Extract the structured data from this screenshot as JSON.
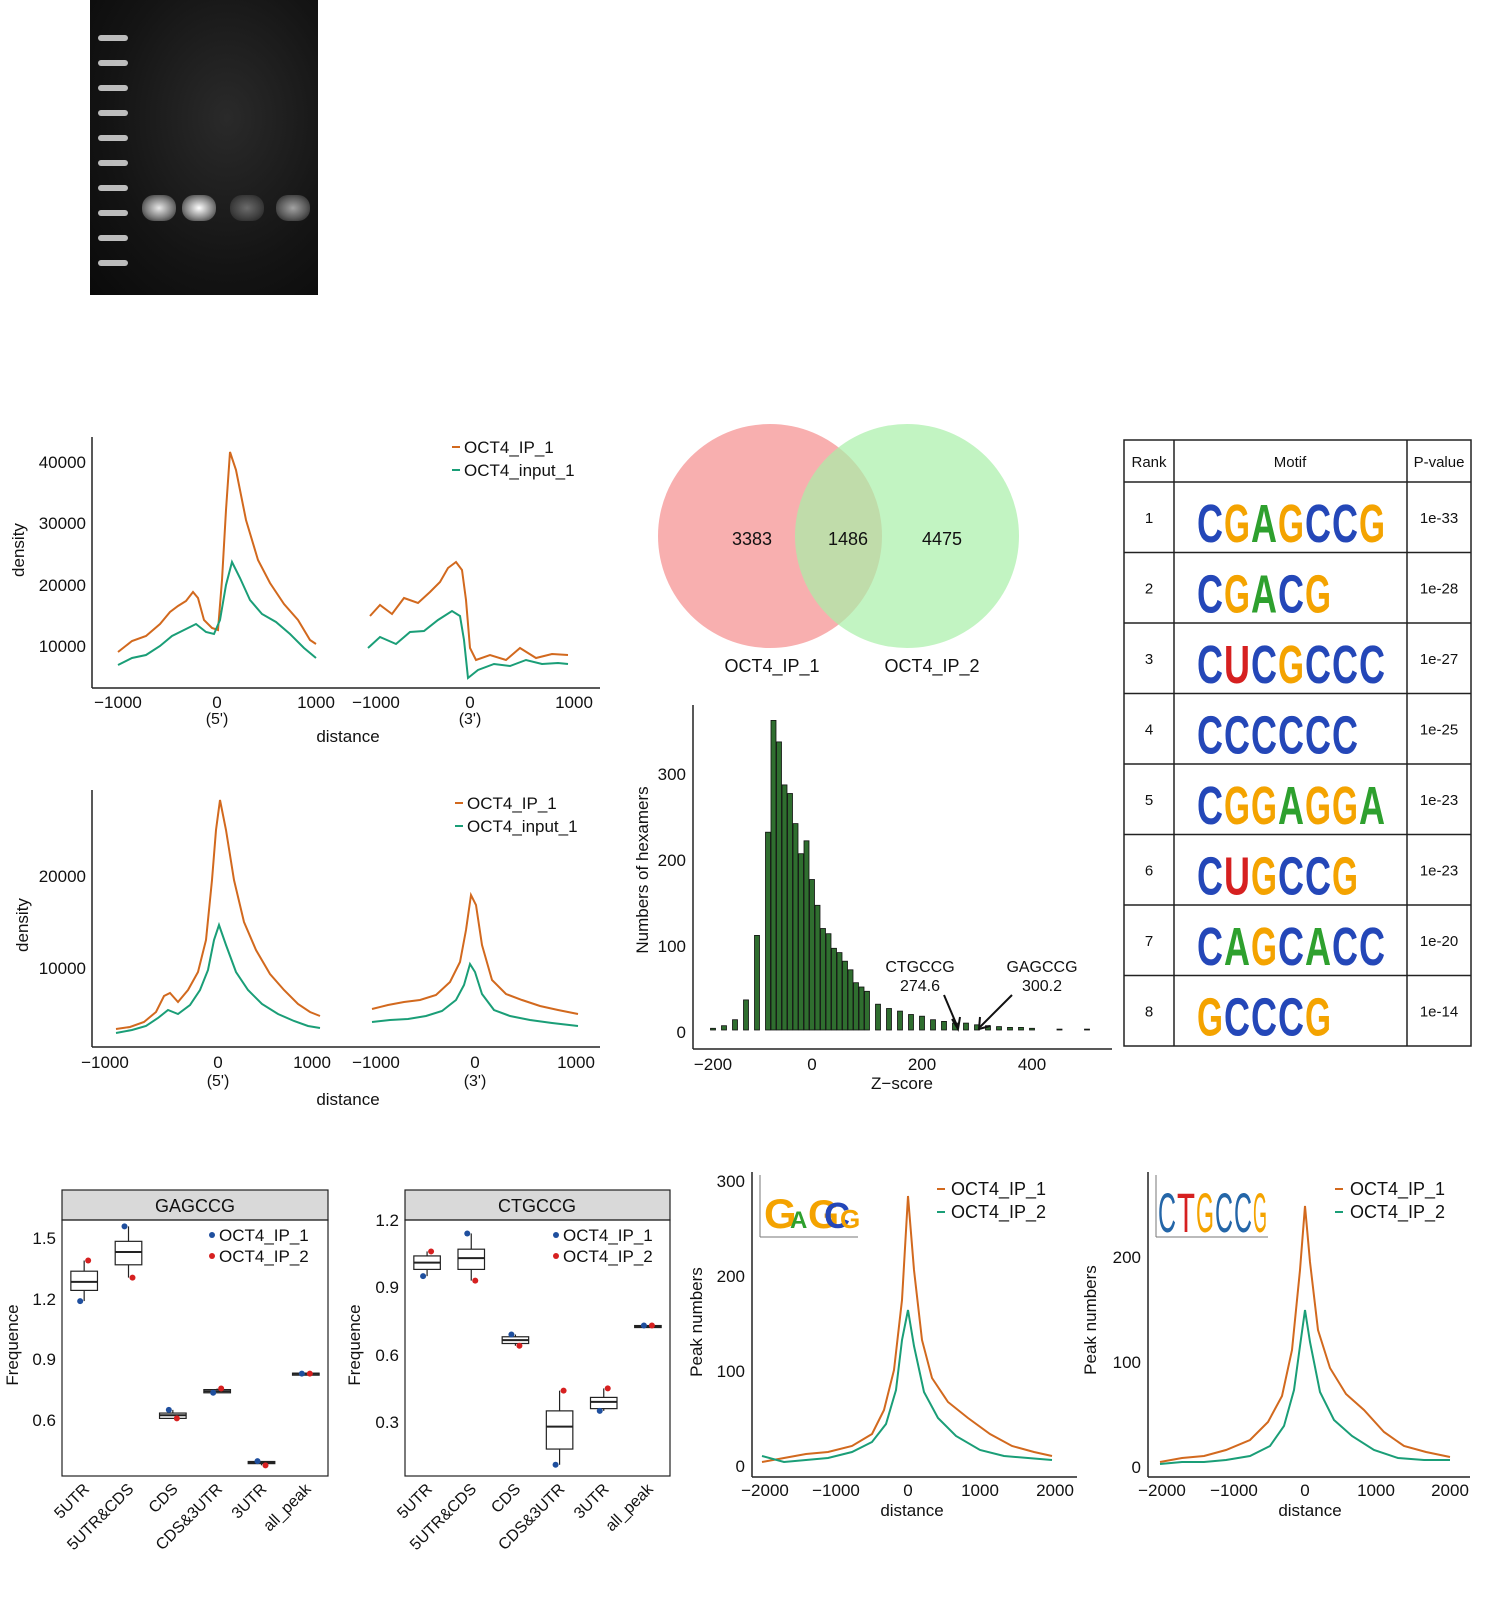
{
  "colors": {
    "ip1": "#d2691e",
    "input": "#1a9e77",
    "ip2_line": "#1a9e77",
    "venn_a": "#f7a1a1",
    "venn_b": "#a8f0a8",
    "hist": "#2f6e2f",
    "box_ip1": "#1f4f9e",
    "box_ip2": "#d62020",
    "strip": "#d9d9d9"
  },
  "gel": {
    "lanes": 4,
    "ladder_bands": 10
  },
  "metagene_a": {
    "ylabel": "density",
    "xlabel": "distance",
    "ytick_labels": [
      "10000",
      "20000",
      "30000",
      "40000"
    ],
    "left_xticks": [
      "−1000",
      "0",
      "1000"
    ],
    "right_xticks": [
      "−1000",
      "0",
      "1000"
    ],
    "left_sub": "(5')",
    "right_sub": "(3')",
    "legend": [
      "OCT4_IP_1",
      "OCT4_input_1"
    ]
  },
  "metagene_b": {
    "ylabel": "density",
    "xlabel": "distance",
    "ytick_labels": [
      "10000",
      "20000"
    ],
    "left_xticks": [
      "−1000",
      "0",
      "1000"
    ],
    "right_xticks": [
      "−1000",
      "0",
      "1000"
    ],
    "left_sub": "(5')",
    "right_sub": "(3')",
    "legend": [
      "OCT4_IP_1",
      "OCT4_input_1"
    ]
  },
  "venn": {
    "left_only": "3383",
    "overlap": "1486",
    "right_only": "4475",
    "left_label": "OCT4_IP_1",
    "right_label": "OCT4_IP_2"
  },
  "histogram": {
    "xlabel": "Z−score",
    "ylabel": "Numbers of hexamers",
    "xtick_labels": [
      "−200",
      "0",
      "200",
      "400"
    ],
    "ytick_labels": [
      "0",
      "100",
      "200",
      "300"
    ],
    "annotations": [
      {
        "name": "CTGCCG",
        "value": "274.6"
      },
      {
        "name": "GAGCCG",
        "value": "300.2"
      }
    ]
  },
  "motif_table": {
    "headers": [
      "Rank",
      "Motif",
      "P-value"
    ],
    "rows": [
      {
        "rank": "1",
        "motif": "CGAGCCG",
        "pvalue": "1e-33"
      },
      {
        "rank": "2",
        "motif": "CGACG",
        "pvalue": "1e-28"
      },
      {
        "rank": "3",
        "motif": "CUCGCCC",
        "pvalue": "1e-27"
      },
      {
        "rank": "4",
        "motif": "CCCCCC",
        "pvalue": "1e-25"
      },
      {
        "rank": "5",
        "motif": "CGGAGGA",
        "pvalue": "1e-23"
      },
      {
        "rank": "6",
        "motif": "CUGCCG",
        "pvalue": "1e-23"
      },
      {
        "rank": "7",
        "motif": "CAGCACC",
        "pvalue": "1e-20"
      },
      {
        "rank": "8",
        "motif": "GCCCG",
        "pvalue": "1e-14"
      }
    ]
  },
  "box_gagccg": {
    "strip": "GAGCCG",
    "ylabel": "Frequence",
    "ytick_labels": [
      "0.6",
      "0.9",
      "1.2",
      "1.5"
    ],
    "categories": [
      "5UTR",
      "5UTR&CDS",
      "CDS",
      "CDS&3UTR",
      "3UTR",
      "all_peak"
    ],
    "legend": [
      "OCT4_IP_1",
      "OCT4_IP_2"
    ]
  },
  "box_ctgccg": {
    "strip": "CTGCCG",
    "ylabel": "Frequence",
    "ytick_labels": [
      "0.3",
      "0.6",
      "0.9",
      "1.2"
    ],
    "categories": [
      "5UTR",
      "5UTR&CDS",
      "CDS",
      "CDS&3UTR",
      "3UTR",
      "all_peak"
    ],
    "legend": [
      "OCT4_IP_1",
      "OCT4_IP_2"
    ]
  },
  "peak_gagccg": {
    "ylabel": "Peak numbers",
    "xlabel": "distance",
    "xtick_labels": [
      "−2000",
      "−1000",
      "0",
      "1000",
      "2000"
    ],
    "ytick_labels": [
      "0",
      "100",
      "200",
      "300"
    ],
    "legend": [
      "OCT4_IP_1",
      "OCT4_IP_2"
    ],
    "logo": "GAGCCG"
  },
  "peak_ctgccg": {
    "ylabel": "Peak numbers",
    "xlabel": "distance",
    "xtick_labels": [
      "−2000",
      "−1000",
      "0",
      "1000",
      "2000"
    ],
    "ytick_labels": [
      "0",
      "100",
      "200"
    ],
    "legend": [
      "OCT4_IP_1",
      "OCT4_IP_2"
    ],
    "logo": "CTGCCG"
  },
  "chart_data": [
    {
      "type": "line",
      "ylabel": "density",
      "xlabel": "distance",
      "x": [
        -1000,
        -500,
        -250,
        0,
        150,
        500,
        1000
      ],
      "series": [
        {
          "name": "OCT4_IP_1",
          "segment": "5'",
          "values": [
            8000,
            13000,
            18500,
            13000,
            42000,
            25000,
            10000
          ]
        },
        {
          "name": "OCT4_input_1",
          "segment": "5'",
          "values": [
            6000,
            10000,
            12500,
            13000,
            23500,
            12000,
            7500
          ]
        },
        {
          "name": "OCT4_IP_1",
          "segment": "3'",
          "values": [
            13000,
            17000,
            20000,
            23000,
            7000,
            8000,
            8500
          ]
        },
        {
          "name": "OCT4_input_1",
          "segment": "3'",
          "values": [
            9000,
            11000,
            13000,
            15000,
            5000,
            6500,
            6500
          ]
        }
      ]
    },
    {
      "type": "line",
      "ylabel": "density",
      "xlabel": "distance",
      "x": [
        -1000,
        -500,
        -250,
        0,
        250,
        500,
        1000
      ],
      "series": [
        {
          "name": "OCT4_IP_1",
          "segment": "5'",
          "values": [
            3000,
            7000,
            10000,
            28000,
            15000,
            9000,
            5000
          ]
        },
        {
          "name": "OCT4_input_1",
          "segment": "5'",
          "values": [
            2500,
            5000,
            7500,
            14500,
            9000,
            5500,
            3000
          ]
        },
        {
          "name": "OCT4_IP_1",
          "segment": "3'",
          "values": [
            5500,
            7000,
            9000,
            18000,
            8500,
            6500,
            5000
          ]
        },
        {
          "name": "OCT4_input_1",
          "segment": "3'",
          "values": [
            3500,
            4500,
            6000,
            10500,
            5000,
            4000,
            3000
          ]
        }
      ]
    },
    {
      "type": "bar",
      "xlabel": "Z−score",
      "ylabel": "Numbers of hexamers",
      "x": [
        -180,
        -160,
        -140,
        -120,
        -100,
        -80,
        -70,
        -60,
        -50,
        -40,
        -30,
        -20,
        -10,
        0,
        10,
        20,
        30,
        40,
        50,
        60,
        70,
        80,
        90,
        100,
        120,
        140,
        160,
        180,
        200,
        220,
        240,
        260,
        280,
        300,
        320,
        340,
        360,
        380,
        400,
        450,
        500
      ],
      "values": [
        2,
        5,
        12,
        35,
        110,
        230,
        360,
        335,
        285,
        275,
        240,
        205,
        220,
        175,
        145,
        118,
        112,
        95,
        90,
        80,
        70,
        55,
        50,
        45,
        30,
        25,
        22,
        18,
        16,
        12,
        10,
        8,
        8,
        6,
        5,
        4,
        3,
        3,
        2,
        1,
        1
      ],
      "annotations": [
        {
          "label": "CTGCCG",
          "x": 274.6
        },
        {
          "label": "GAGCCG",
          "x": 300.2
        }
      ]
    },
    {
      "type": "box",
      "title": "GAGCCG",
      "categories": [
        "5UTR",
        "5UTR&CDS",
        "CDS",
        "CDS&3UTR",
        "3UTR",
        "all_peak"
      ],
      "boxes": [
        {
          "q1": 1.23,
          "median": 1.27,
          "q3": 1.32
        },
        {
          "q1": 1.35,
          "median": 1.41,
          "q3": 1.46
        },
        {
          "q1": 0.63,
          "median": 0.645,
          "q3": 0.655
        },
        {
          "q1": 0.75,
          "median": 0.757,
          "q3": 0.765
        },
        {
          "q1": 0.418,
          "median": 0.422,
          "q3": 0.428
        },
        {
          "q1": 0.838,
          "median": 0.84,
          "q3": 0.842
        }
      ],
      "series": [
        {
          "name": "OCT4_IP_1",
          "values": [
            1.18,
            1.53,
            0.67,
            0.75,
            0.43,
            0.84
          ]
        },
        {
          "name": "OCT4_IP_2",
          "values": [
            1.37,
            1.29,
            0.63,
            0.77,
            0.41,
            0.84
          ]
        }
      ]
    },
    {
      "type": "box",
      "title": "CTGCCG",
      "categories": [
        "5UTR",
        "5UTR&CDS",
        "CDS",
        "CDS&3UTR",
        "3UTR",
        "all_peak"
      ],
      "boxes": [
        {
          "q1": 0.99,
          "median": 1.02,
          "q3": 1.05
        },
        {
          "q1": 0.99,
          "median": 1.04,
          "q3": 1.08
        },
        {
          "q1": 0.66,
          "median": 0.675,
          "q3": 0.69
        },
        {
          "q1": 0.19,
          "median": 0.29,
          "q3": 0.36
        },
        {
          "q1": 0.37,
          "median": 0.4,
          "q3": 0.42
        },
        {
          "q1": 0.735,
          "median": 0.737,
          "q3": 0.74
        }
      ],
      "series": [
        {
          "name": "OCT4_IP_1",
          "values": [
            0.96,
            1.15,
            0.7,
            0.12,
            0.36,
            0.74
          ]
        },
        {
          "name": "OCT4_IP_2",
          "values": [
            1.07,
            0.94,
            0.65,
            0.45,
            0.46,
            0.74
          ]
        }
      ]
    },
    {
      "type": "line",
      "xlabel": "distance",
      "ylabel": "Peak numbers",
      "x": [
        -2000,
        -1500,
        -1000,
        -500,
        -250,
        0,
        250,
        500,
        1000,
        1500,
        2000
      ],
      "series": [
        {
          "name": "OCT4_IP_1",
          "values": [
            10,
            15,
            25,
            40,
            90,
            285,
            120,
            75,
            40,
            20,
            12
          ]
        },
        {
          "name": "OCT4_IP_2",
          "values": [
            10,
            12,
            15,
            25,
            55,
            165,
            70,
            40,
            15,
            8,
            8
          ]
        }
      ]
    },
    {
      "type": "line",
      "xlabel": "distance",
      "ylabel": "Peak numbers",
      "x": [
        -2000,
        -1500,
        -1000,
        -500,
        -250,
        0,
        250,
        500,
        1000,
        1500,
        2000
      ],
      "series": [
        {
          "name": "OCT4_IP_1",
          "values": [
            12,
            15,
            25,
            50,
            100,
            255,
            110,
            75,
            45,
            25,
            15
          ]
        },
        {
          "name": "OCT4_IP_2",
          "values": [
            10,
            12,
            15,
            25,
            60,
            155,
            60,
            35,
            20,
            12,
            10
          ]
        }
      ]
    }
  ]
}
